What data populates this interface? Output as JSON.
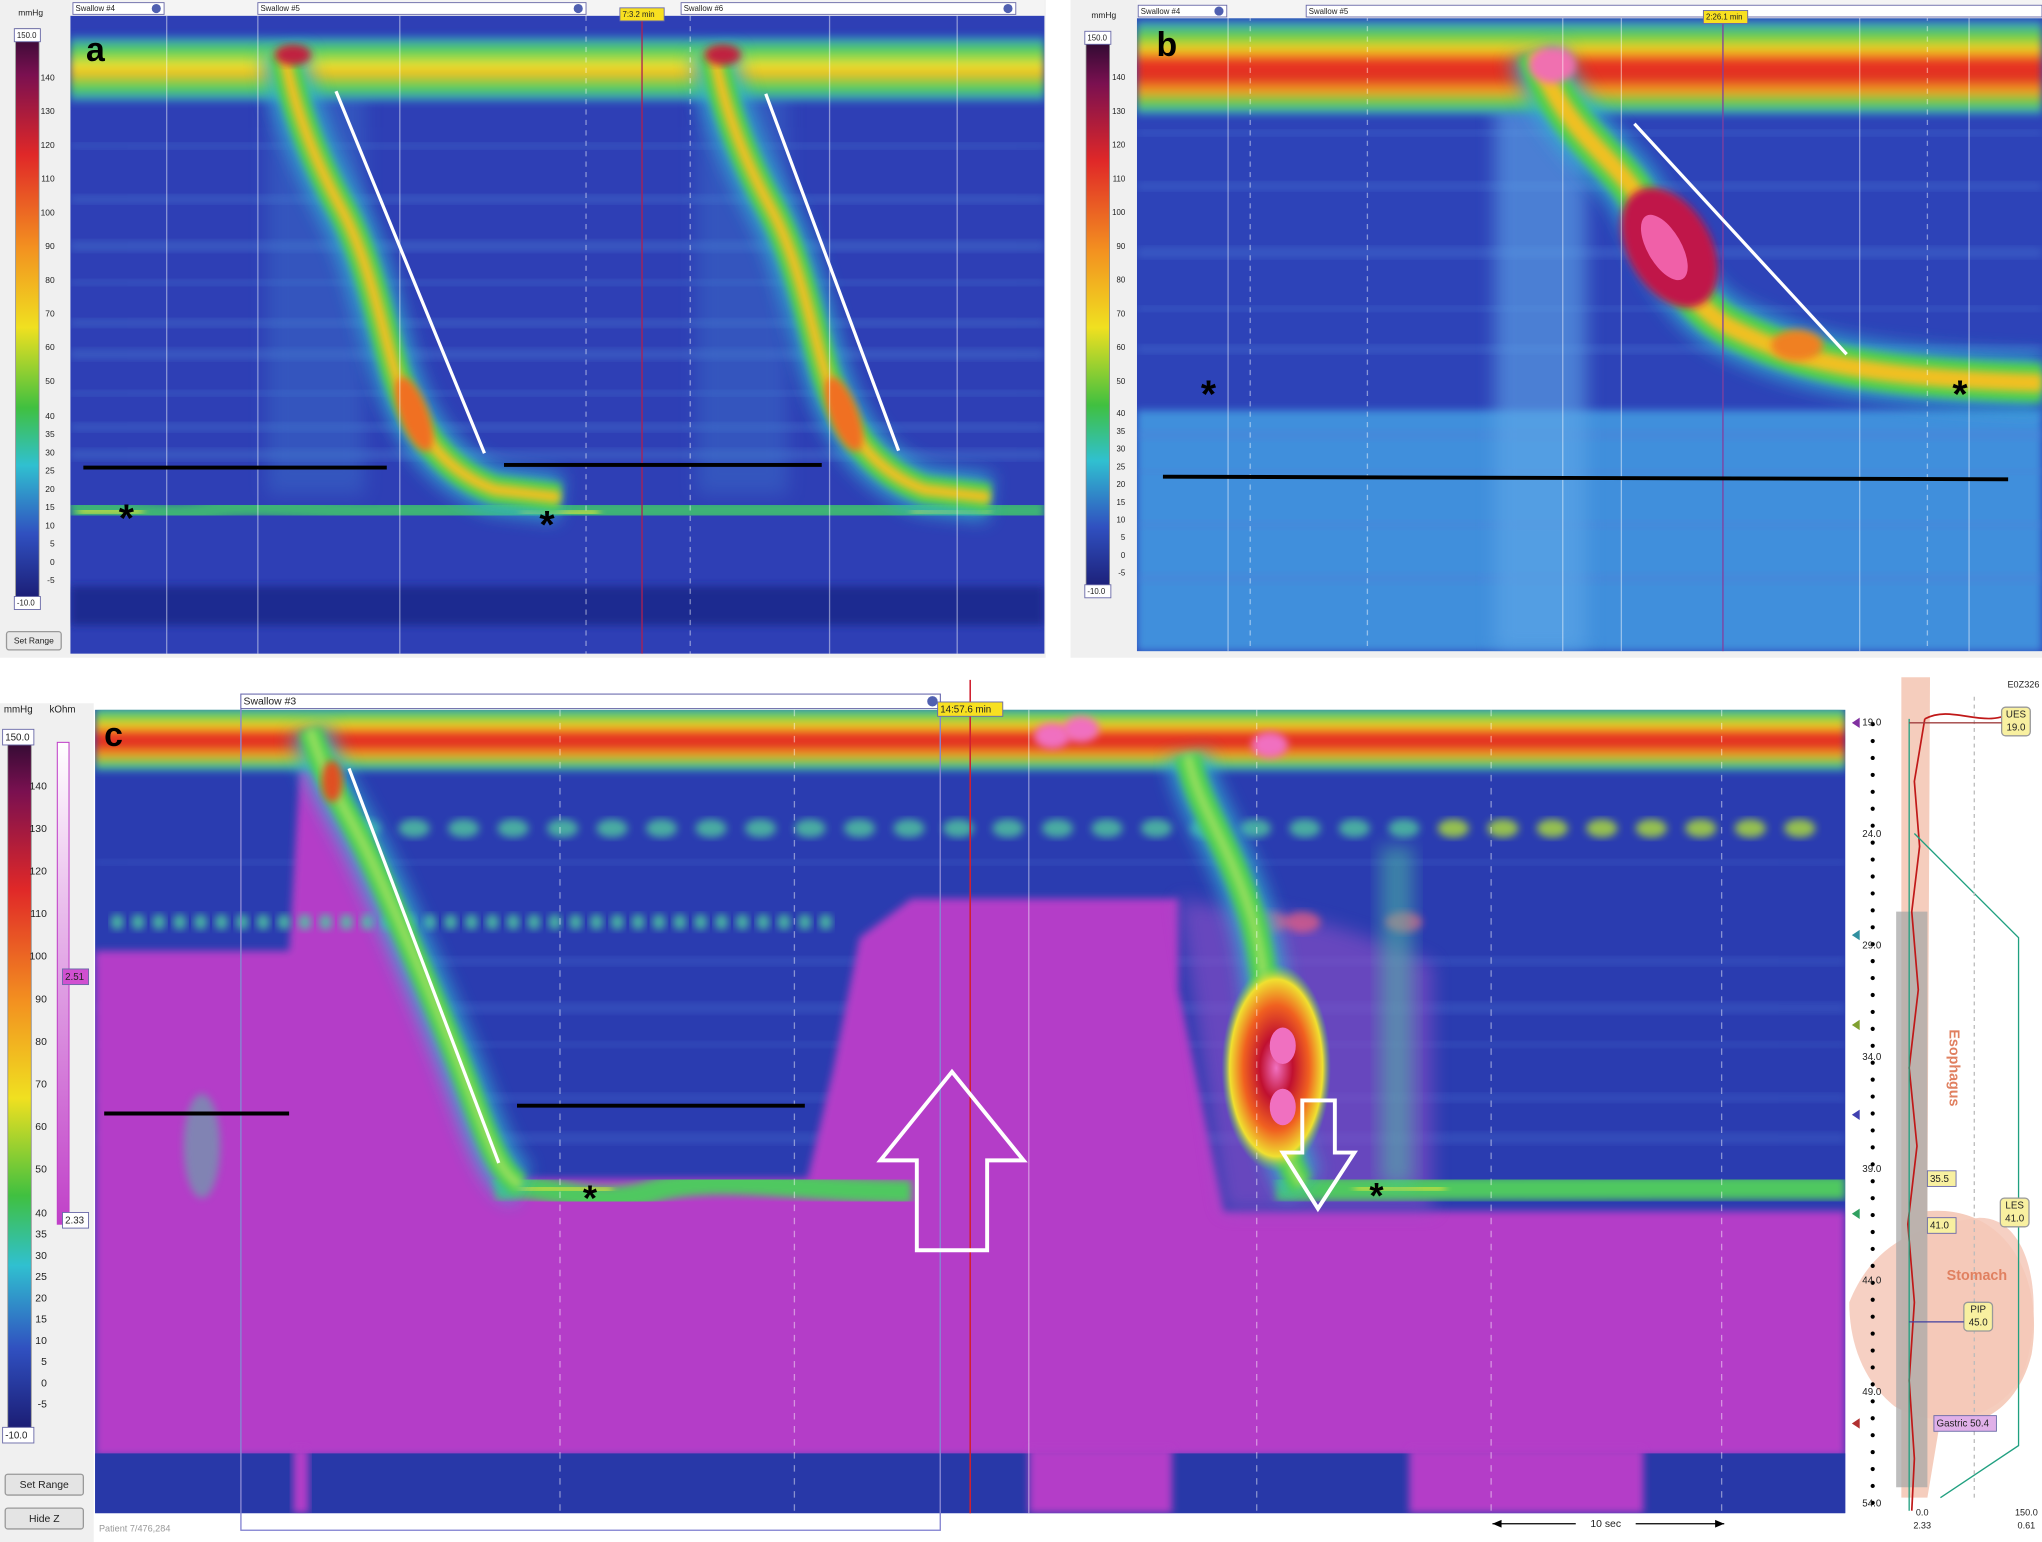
{
  "panel_a": {
    "label": "a",
    "unit": "mmHg",
    "scale_max": "150.0",
    "scale_min": "-10.0",
    "scale_ticks": [
      "140",
      "130",
      "120",
      "110",
      "100",
      "90",
      "80",
      "70",
      "60",
      "50",
      "40",
      "35",
      "30",
      "25",
      "20",
      "15",
      "10",
      "5",
      "0",
      "-5"
    ],
    "button": "Set Range",
    "swallows": [
      "Swallow #4",
      "Swallow #5",
      "Swallow #6"
    ],
    "time": "7:3.2 min",
    "markers": [
      "*",
      "*"
    ]
  },
  "panel_b": {
    "label": "b",
    "unit": "mmHg",
    "scale_max": "150.0",
    "scale_min": "-10.0",
    "scale_ticks": [
      "140",
      "130",
      "120",
      "110",
      "100",
      "90",
      "80",
      "70",
      "60",
      "50",
      "40",
      "35",
      "30",
      "25",
      "20",
      "15",
      "10",
      "5",
      "0",
      "-5"
    ],
    "swallows": [
      "Swallow #4",
      "Swallow #5"
    ],
    "time": "2:26.1 min",
    "markers": [
      "*",
      "*"
    ]
  },
  "panel_c": {
    "label": "c",
    "units": [
      "mmHg",
      "kOhm"
    ],
    "scale_max": "150.0",
    "scale_min": "-10.0",
    "scale_ticks": [
      "140",
      "130",
      "120",
      "110",
      "100",
      "90",
      "80",
      "70",
      "60",
      "50",
      "40",
      "35",
      "30",
      "25",
      "20",
      "15",
      "10",
      "5",
      "0",
      "-5"
    ],
    "impedance_high": "2.51",
    "impedance_low": "2.33",
    "buttons": [
      "Set Range",
      "Hide Z"
    ],
    "swallow": "Swallow #3",
    "time": "14:57.6 min",
    "patient": "Patient 7/476,284",
    "duration": "10 sec",
    "markers": [
      "*",
      "*"
    ],
    "sensor": {
      "id": "E0Z326",
      "positions": [
        "19.0",
        "24.0",
        "29.0",
        "34.0",
        "39.0",
        "44.0",
        "49.0",
        "54.0"
      ],
      "ues": {
        "name": "UES",
        "value": "19.0"
      },
      "les": {
        "name": "LES",
        "value": "41.0"
      },
      "pip": {
        "name": "PIP",
        "value": "45.0"
      },
      "marks": [
        "35.5",
        "41.0"
      ],
      "gastric": "Gastric 50.4",
      "regions": [
        "Esophagus",
        "Stomach"
      ],
      "axis": [
        "0.0",
        "150.0"
      ],
      "axis_sub": [
        "2.33",
        "0.61"
      ]
    }
  }
}
